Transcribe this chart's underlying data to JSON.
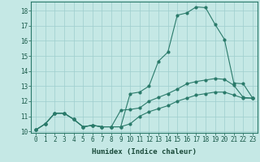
{
  "xlabel": "Humidex (Indice chaleur)",
  "ylabel": "",
  "xlim": [
    -0.5,
    23.5
  ],
  "ylim": [
    9.9,
    18.6
  ],
  "yticks": [
    10,
    11,
    12,
    13,
    14,
    15,
    16,
    17,
    18
  ],
  "xticks": [
    0,
    1,
    2,
    3,
    4,
    5,
    6,
    7,
    8,
    9,
    10,
    11,
    12,
    13,
    14,
    15,
    16,
    17,
    18,
    19,
    20,
    21,
    22,
    23
  ],
  "line_color": "#2a7a6a",
  "bg_color": "#c5e8e5",
  "grid_color": "#9ecece",
  "line1_x": [
    0,
    1,
    2,
    3,
    4,
    5,
    6,
    7,
    8,
    9,
    10,
    11,
    12,
    13,
    14,
    15,
    16,
    17,
    18,
    19,
    20,
    21,
    22,
    23
  ],
  "line1_y": [
    10.1,
    10.5,
    11.2,
    11.2,
    10.8,
    10.3,
    10.4,
    10.3,
    10.3,
    10.3,
    12.5,
    12.6,
    13.0,
    14.65,
    15.25,
    17.7,
    17.85,
    18.25,
    18.2,
    17.1,
    16.1,
    13.2,
    13.15,
    12.2
  ],
  "line2_x": [
    0,
    1,
    2,
    3,
    4,
    5,
    6,
    7,
    8,
    9,
    10,
    11,
    12,
    13,
    14,
    15,
    16,
    17,
    18,
    19,
    20,
    21,
    22,
    23
  ],
  "line2_y": [
    10.1,
    10.5,
    11.2,
    11.2,
    10.8,
    10.3,
    10.4,
    10.3,
    10.3,
    11.4,
    11.45,
    11.55,
    12.0,
    12.25,
    12.5,
    12.8,
    13.15,
    13.3,
    13.4,
    13.5,
    13.45,
    13.05,
    12.25,
    12.2
  ],
  "line3_x": [
    0,
    1,
    2,
    3,
    4,
    5,
    6,
    7,
    8,
    9,
    10,
    11,
    12,
    13,
    14,
    15,
    16,
    17,
    18,
    19,
    20,
    21,
    22,
    23
  ],
  "line3_y": [
    10.1,
    10.5,
    11.2,
    11.2,
    10.8,
    10.3,
    10.4,
    10.3,
    10.3,
    10.3,
    10.5,
    11.0,
    11.3,
    11.5,
    11.7,
    12.0,
    12.2,
    12.4,
    12.5,
    12.6,
    12.6,
    12.4,
    12.2,
    12.2
  ],
  "tick_fontsize": 5.5,
  "xlabel_fontsize": 6.5,
  "marker_size": 2.0
}
